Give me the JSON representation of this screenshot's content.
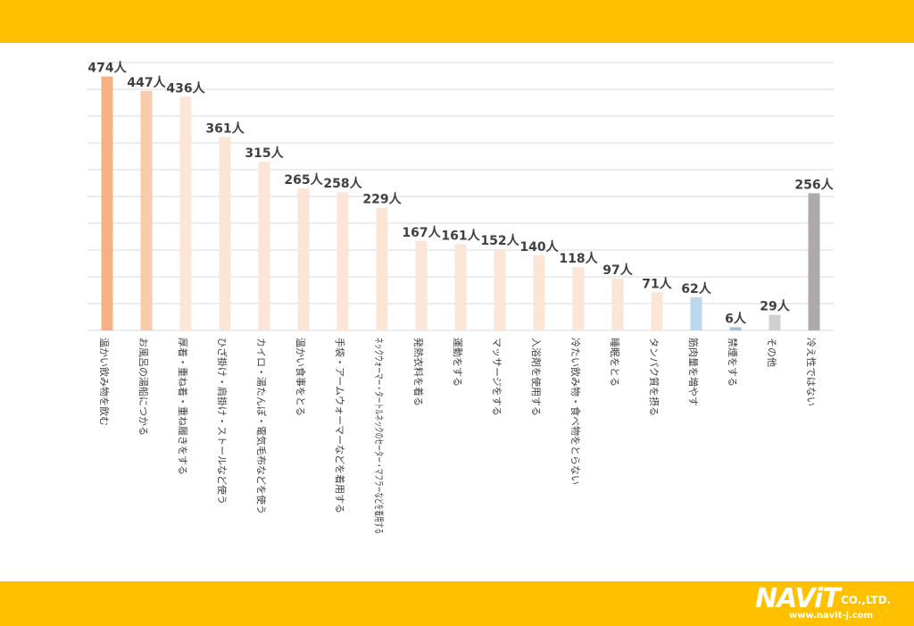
{
  "chart_data": {
    "type": "bar",
    "categories": [
      "温かい飲み物を飲む",
      "お風呂の湯船につかる",
      "厚着・重ね着・重ね履きをする",
      "ひざ掛け・肩掛け・ストールなど使う",
      "カイロ・湯たんぽ・電気毛布などを使う",
      "温かい食事をとる",
      "手袋・アームウォーマーなどを着用する",
      "ネックウォーマー・タートルネックのセーター・マフラーなどを着用する",
      "発熱衣料を着る",
      "運動をする",
      "マッサージをする",
      "入浴剤を使用する",
      "冷たい飲み物・食べ物をとらない",
      "睡眠をとる",
      "タンパク質を摂る",
      "筋肉量を増やす",
      "禁煙をする",
      "その他",
      "冷え性ではない"
    ],
    "values": [
      474,
      447,
      436,
      361,
      315,
      265,
      258,
      229,
      167,
      161,
      152,
      140,
      118,
      97,
      71,
      62,
      6,
      29,
      256
    ],
    "value_labels": [
      "474人",
      "447人",
      "436人",
      "361人",
      "315人",
      "265人",
      "258人",
      "229人",
      "167人",
      "161人",
      "152人",
      "140人",
      "118人",
      "97人",
      "71人",
      "62人",
      "6人",
      "29人",
      "256人"
    ],
    "colors": [
      "#F4B183",
      "#F8CBAD",
      "#FBE5D6",
      "#FBE5D6",
      "#FBE5D6",
      "#FBE5D6",
      "#FBE5D6",
      "#FBE5D6",
      "#FBE5D6",
      "#FBE5D6",
      "#FBE5D6",
      "#FBE5D6",
      "#FBE5D6",
      "#FBE5D6",
      "#FBE5D6",
      "#BDD7EE",
      "#9DC3E6",
      "#D0CECE",
      "#AEAAAA"
    ],
    "ylim": [
      0,
      500
    ],
    "grid": true,
    "title": "",
    "xlabel": "",
    "ylabel": ""
  },
  "logo": {
    "main": "NAViT",
    "suffix": "CO.,LTD.",
    "url": "www.navit-j.com"
  },
  "colors": {
    "band": "#FFC000",
    "grid": "#D9D9D9",
    "text": "#404040"
  }
}
